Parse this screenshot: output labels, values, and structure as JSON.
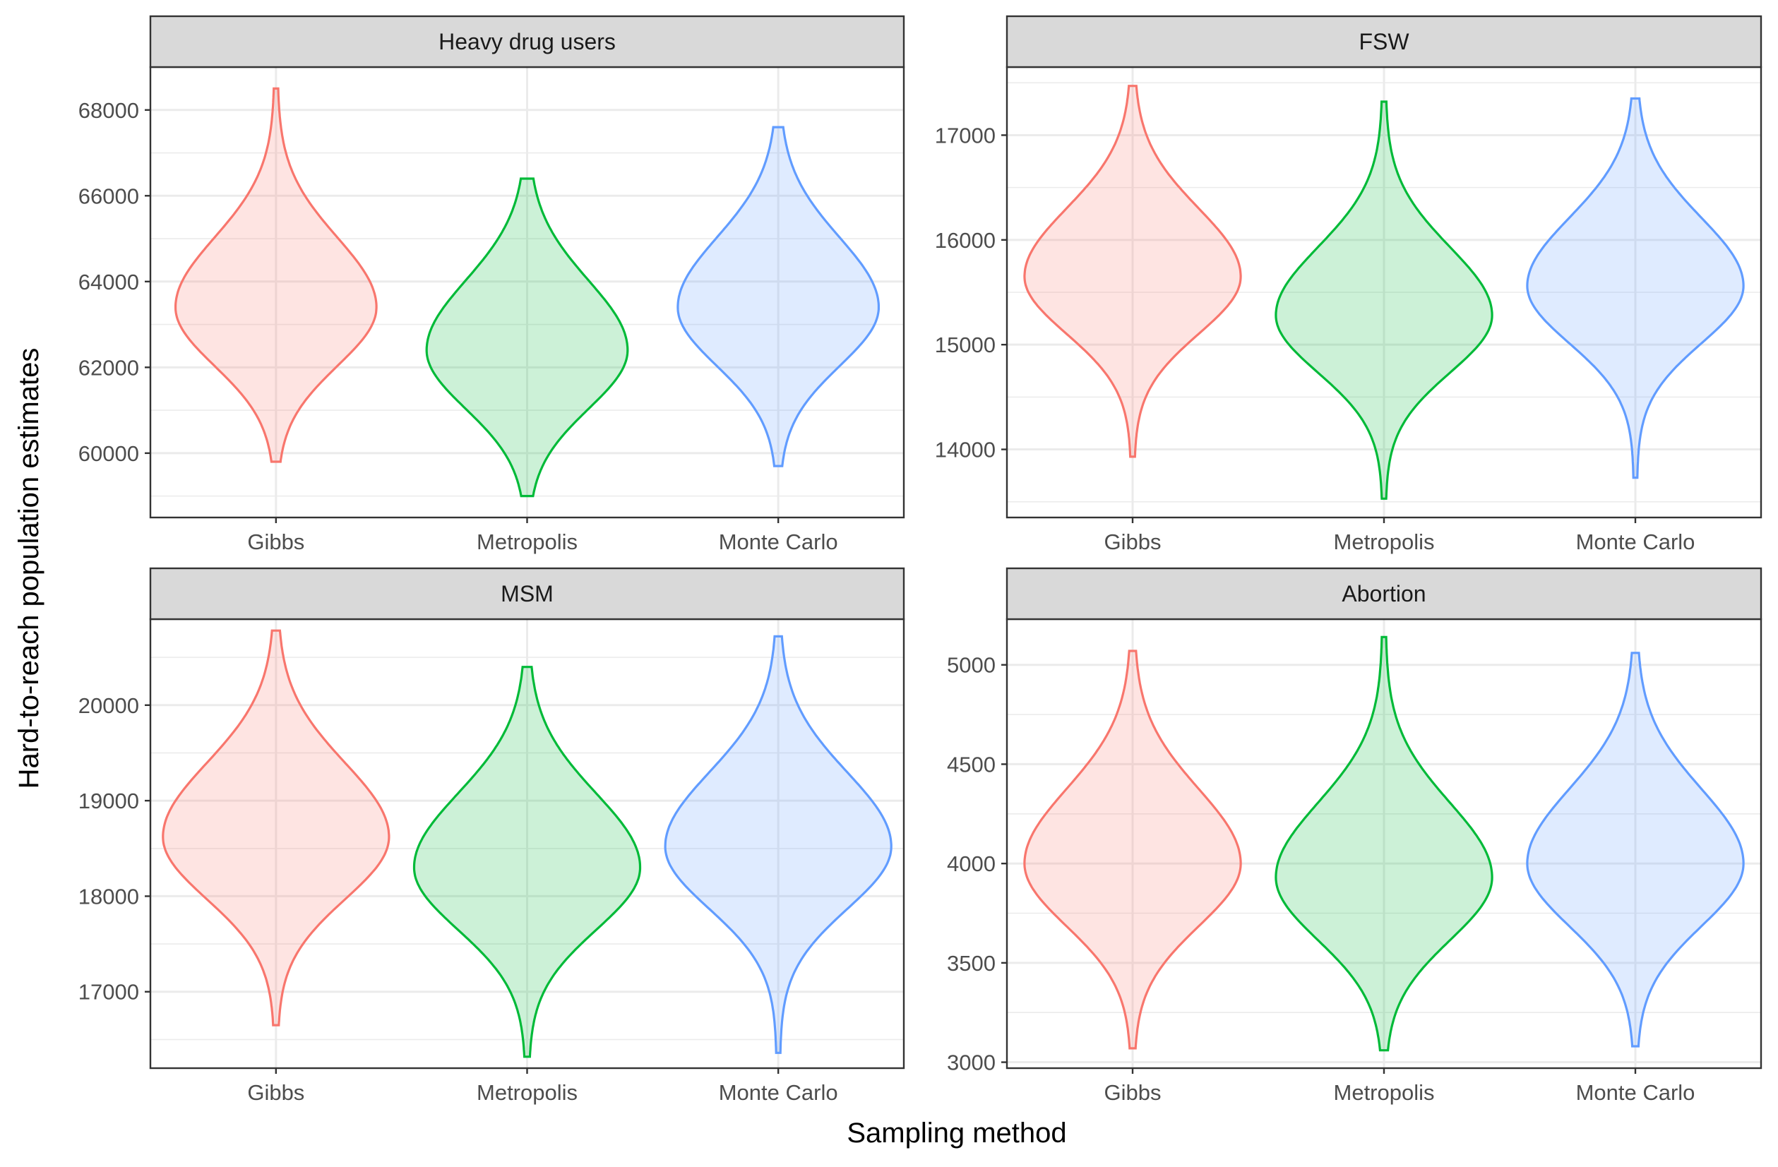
{
  "chart_data": {
    "type": "violin",
    "xlabel": "Sampling method",
    "ylabel": "Hard-to-reach population estimates",
    "categories": [
      "Gibbs",
      "Metropolis",
      "Monte Carlo"
    ],
    "colors": {
      "Gibbs": "#f8766d",
      "Metropolis": "#00ba38",
      "Monte Carlo": "#619cff"
    },
    "panels": [
      {
        "title": "Heavy drug users",
        "ylim": [
          58500,
          69000
        ],
        "yticks": [
          60000,
          62000,
          64000,
          66000,
          68000
        ],
        "violins": [
          {
            "category": "Gibbs",
            "min": 59800,
            "max": 68500,
            "mode": 63400,
            "spread": 1300,
            "max_halfwidth": 0.4
          },
          {
            "category": "Metropolis",
            "min": 59000,
            "max": 66400,
            "mode": 62400,
            "spread": 1300,
            "max_halfwidth": 0.4
          },
          {
            "category": "Monte Carlo",
            "min": 59700,
            "max": 67600,
            "mode": 63400,
            "spread": 1300,
            "max_halfwidth": 0.4
          }
        ]
      },
      {
        "title": "FSW",
        "ylim": [
          13350,
          17650
        ],
        "yticks": [
          14000,
          15000,
          16000,
          17000
        ],
        "violins": [
          {
            "category": "Gibbs",
            "min": 13930,
            "max": 17470,
            "mode": 15650,
            "spread": 520,
            "max_halfwidth": 0.43
          },
          {
            "category": "Metropolis",
            "min": 13530,
            "max": 17320,
            "mode": 15280,
            "spread": 520,
            "max_halfwidth": 0.43
          },
          {
            "category": "Monte Carlo",
            "min": 13730,
            "max": 17350,
            "mode": 15560,
            "spread": 520,
            "max_halfwidth": 0.43
          }
        ]
      },
      {
        "title": "MSM",
        "ylim": [
          16200,
          20900
        ],
        "yticks": [
          17000,
          18000,
          19000,
          20000
        ],
        "violins": [
          {
            "category": "Gibbs",
            "min": 16650,
            "max": 20780,
            "mode": 18620,
            "spread": 620,
            "max_halfwidth": 0.45
          },
          {
            "category": "Metropolis",
            "min": 16320,
            "max": 20400,
            "mode": 18300,
            "spread": 620,
            "max_halfwidth": 0.45
          },
          {
            "category": "Monte Carlo",
            "min": 16360,
            "max": 20720,
            "mode": 18520,
            "spread": 620,
            "max_halfwidth": 0.45
          }
        ]
      },
      {
        "title": "Abortion",
        "ylim": [
          2970,
          5230
        ],
        "yticks": [
          3000,
          3500,
          4000,
          4500,
          5000
        ],
        "violins": [
          {
            "category": "Gibbs",
            "min": 3070,
            "max": 5070,
            "mode": 4000,
            "spread": 300,
            "max_halfwidth": 0.43
          },
          {
            "category": "Metropolis",
            "min": 3060,
            "max": 5140,
            "mode": 3930,
            "spread": 300,
            "max_halfwidth": 0.43
          },
          {
            "category": "Monte Carlo",
            "min": 3080,
            "max": 5060,
            "mode": 4000,
            "spread": 300,
            "max_halfwidth": 0.43
          }
        ]
      }
    ]
  }
}
